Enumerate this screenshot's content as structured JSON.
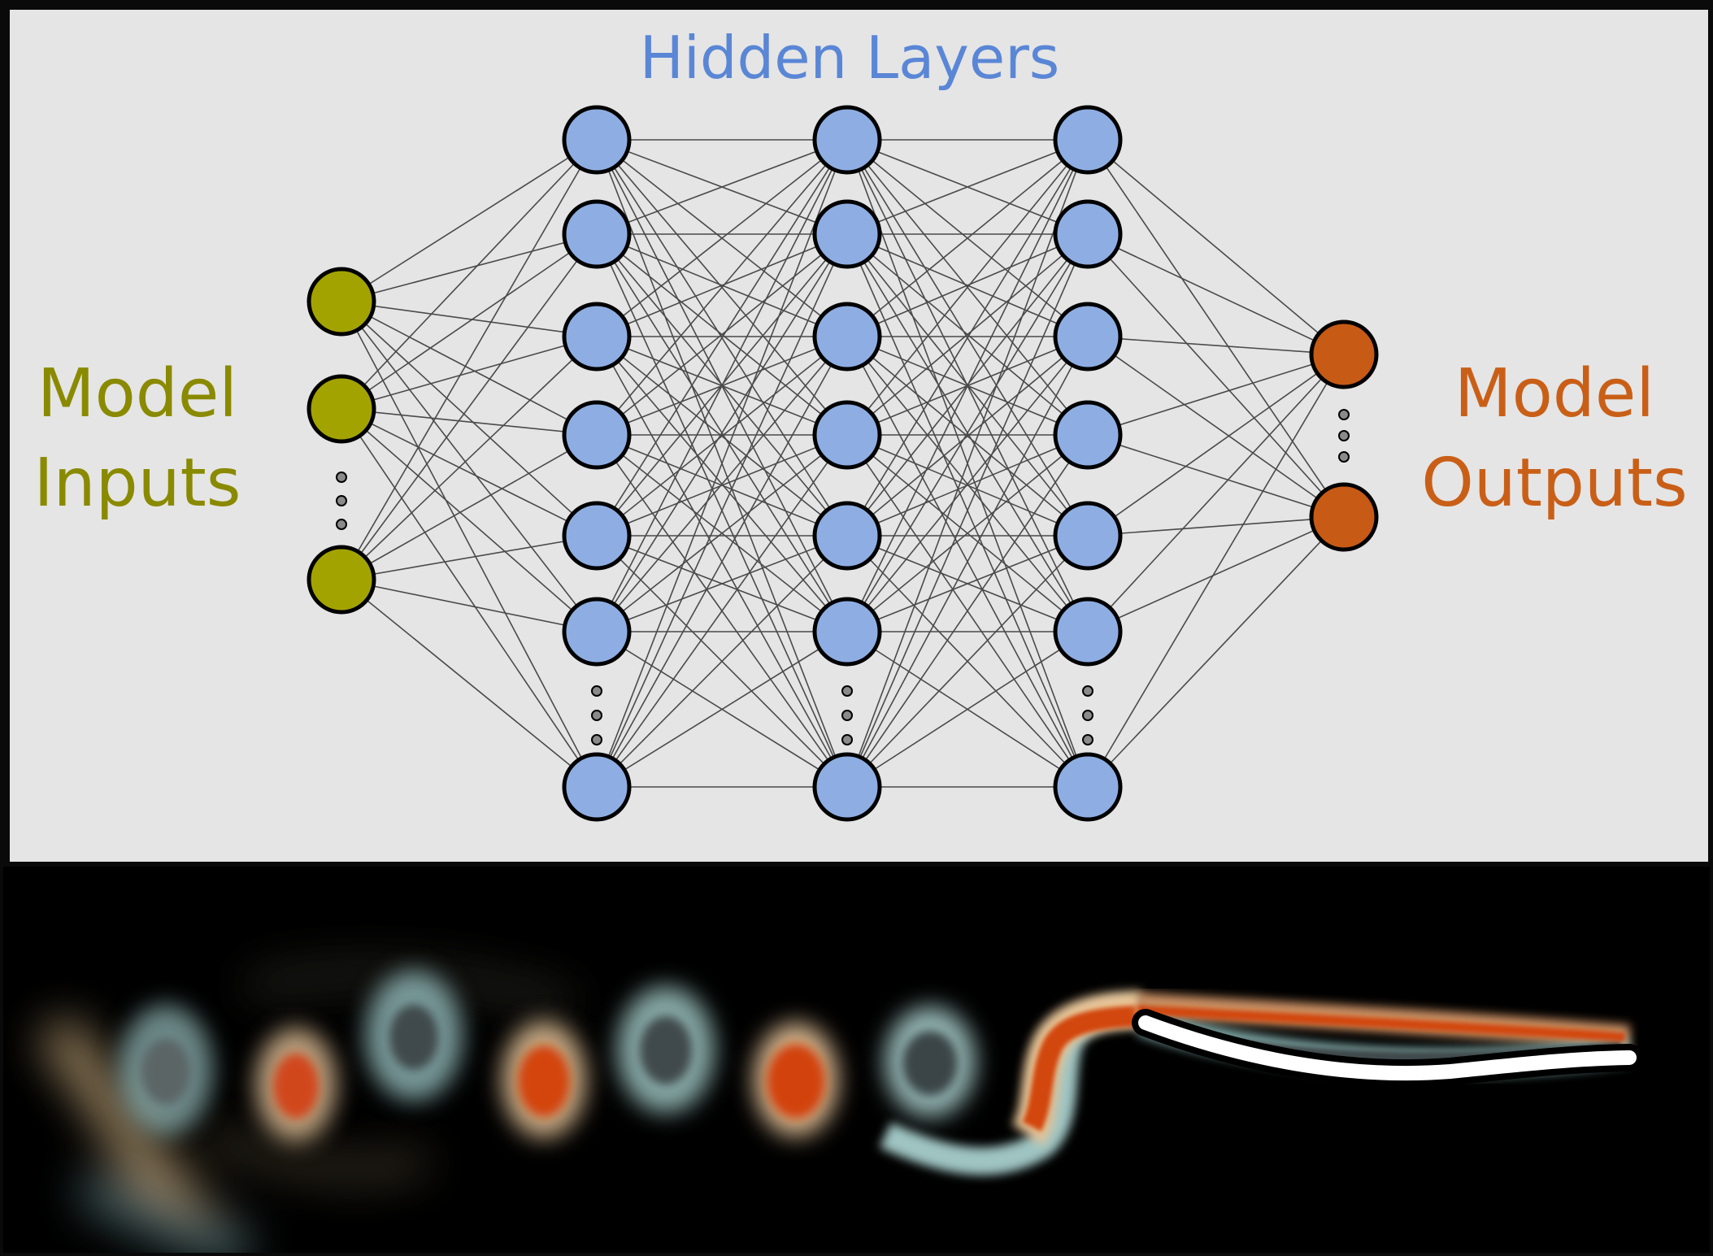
{
  "diagram": {
    "title": "Hidden Layers",
    "inputs_label": [
      "Model",
      "Inputs"
    ],
    "outputs_label": [
      "Model",
      "Outputs"
    ],
    "input_nodes_shown": 3,
    "hidden_layers": 3,
    "hidden_nodes_shown_per_layer": 7,
    "output_nodes_shown": 2,
    "colors": {
      "title": "#5a86d6",
      "inputs": "#8a8a00",
      "input_node": "#a3a300",
      "hidden_node": "#8eaee3",
      "outputs": "#c95f17",
      "output_node": "#c75a14",
      "panel": "#e5e5e5"
    }
  },
  "flow_image": {
    "description_icon": "vortex-wake-flow-image",
    "colors": {
      "background": "#000000",
      "positive_vorticity": "#d2460f",
      "negative_vorticity": "#3f4a4b",
      "halo_positive": "#e7c497",
      "halo_negative": "#9fc4c2",
      "body": "#ffffff"
    }
  }
}
